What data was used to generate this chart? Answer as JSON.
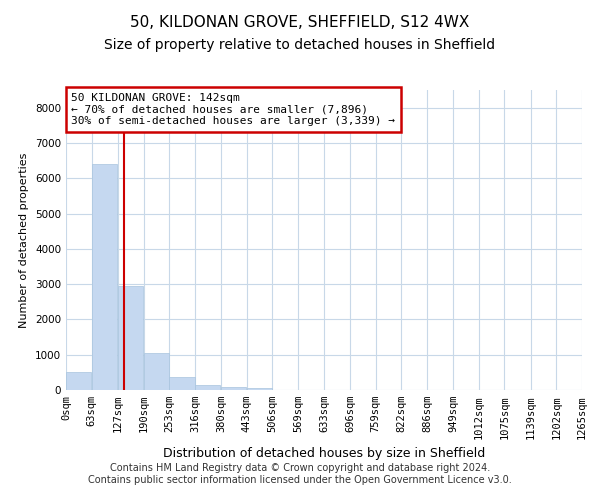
{
  "title": "50, KILDONAN GROVE, SHEFFIELD, S12 4WX",
  "subtitle": "Size of property relative to detached houses in Sheffield",
  "xlabel": "Distribution of detached houses by size in Sheffield",
  "ylabel": "Number of detached properties",
  "footer_line1": "Contains HM Land Registry data © Crown copyright and database right 2024.",
  "footer_line2": "Contains public sector information licensed under the Open Government Licence v3.0.",
  "annotation_line1": "50 KILDONAN GROVE: 142sqm",
  "annotation_line2": "← 70% of detached houses are smaller (7,896)",
  "annotation_line3": "30% of semi-detached houses are larger (3,339) →",
  "property_size": 142,
  "bar_color": "#c5d8f0",
  "bar_edge_color": "#a8c4de",
  "redline_color": "#cc0000",
  "annotation_box_color": "#cc0000",
  "bins": [
    0,
    63,
    127,
    190,
    253,
    316,
    380,
    443,
    506,
    569,
    633,
    696,
    759,
    822,
    886,
    949,
    1012,
    1075,
    1139,
    1202,
    1265
  ],
  "bin_labels": [
    "0sqm",
    "63sqm",
    "127sqm",
    "190sqm",
    "253sqm",
    "316sqm",
    "380sqm",
    "443sqm",
    "506sqm",
    "569sqm",
    "633sqm",
    "696sqm",
    "759sqm",
    "822sqm",
    "886sqm",
    "949sqm",
    "1012sqm",
    "1075sqm",
    "1139sqm",
    "1202sqm",
    "1265sqm"
  ],
  "values": [
    500,
    6400,
    2950,
    1050,
    380,
    150,
    80,
    50,
    0,
    0,
    0,
    0,
    0,
    0,
    0,
    0,
    0,
    0,
    0,
    0
  ],
  "ylim": [
    0,
    8500
  ],
  "yticks": [
    0,
    1000,
    2000,
    3000,
    4000,
    5000,
    6000,
    7000,
    8000
  ],
  "background_color": "#ffffff",
  "grid_color": "#c8d8e8",
  "title_fontsize": 11,
  "subtitle_fontsize": 10,
  "axis_label_fontsize": 9,
  "tick_fontsize": 7.5,
  "ylabel_fontsize": 8
}
